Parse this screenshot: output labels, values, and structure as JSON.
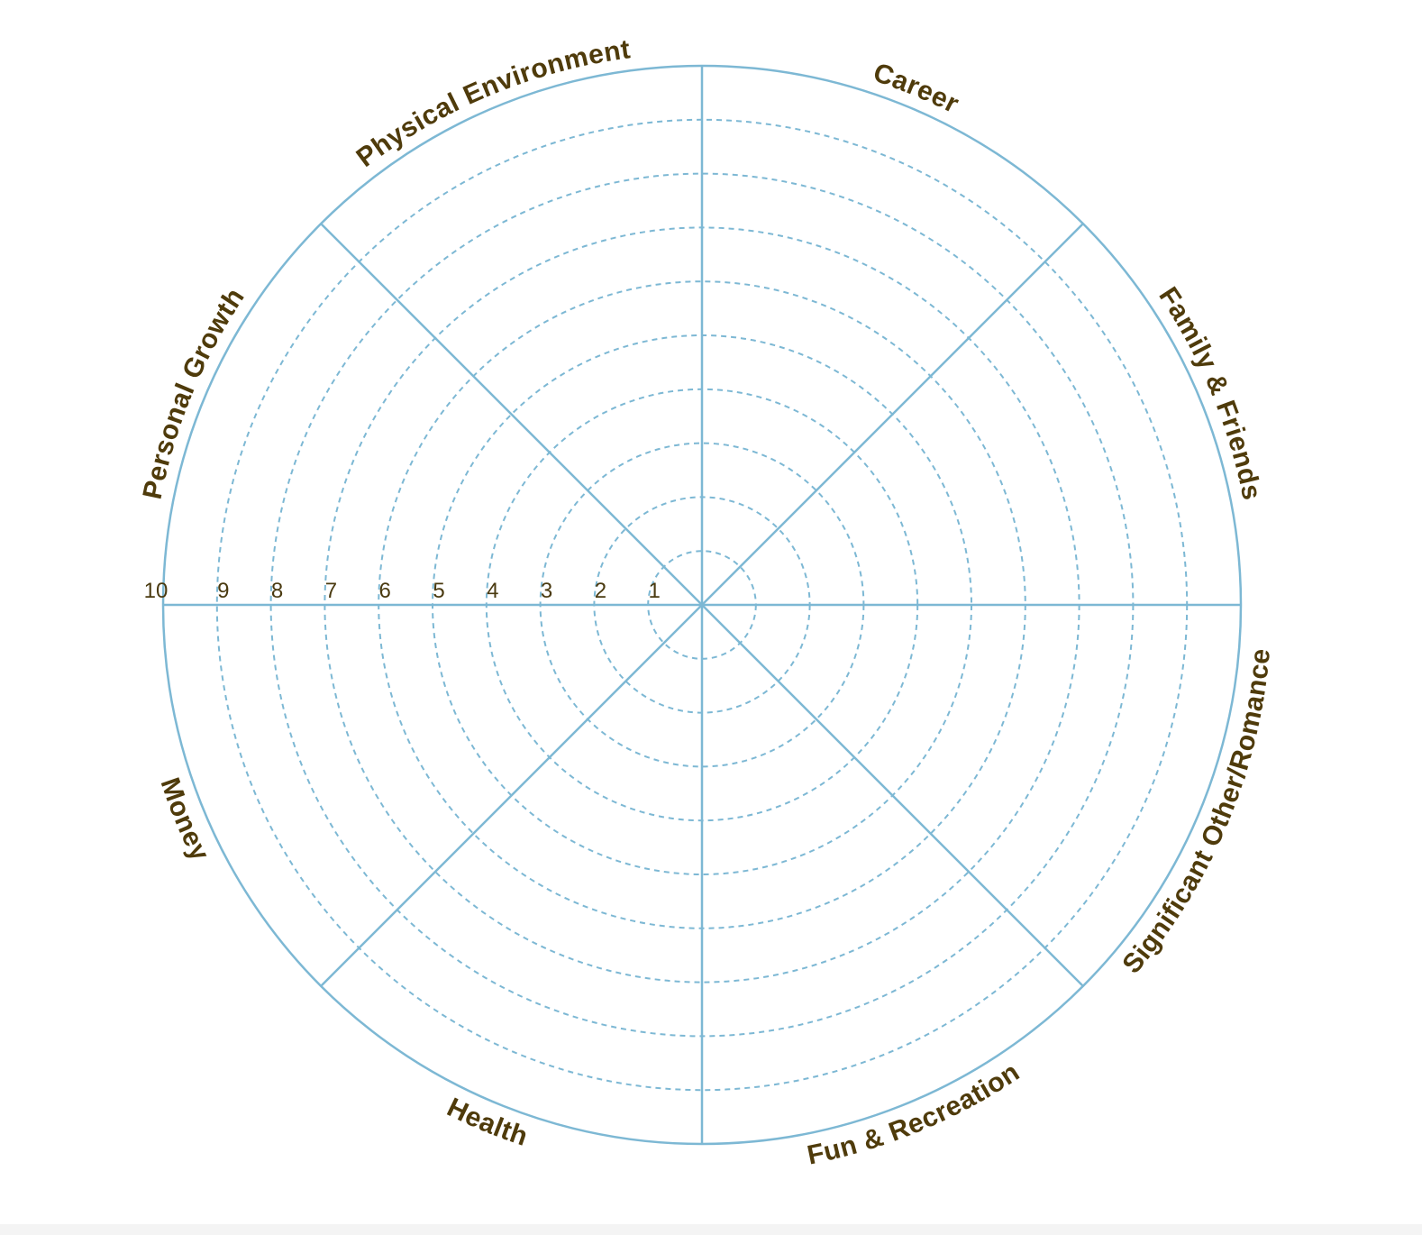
{
  "wheel": {
    "scale_labels": [
      "1",
      "2",
      "3",
      "4",
      "5",
      "6",
      "7",
      "8",
      "9",
      "10"
    ],
    "categories": [
      "Career",
      "Family & Friends",
      "Significant Other/Romance",
      "Fun & Recreation",
      "Health",
      "Money",
      "Personal Growth",
      "Physical Environment"
    ],
    "colors": {
      "line": "#7db8d4",
      "label": "#4f3b0b"
    }
  }
}
